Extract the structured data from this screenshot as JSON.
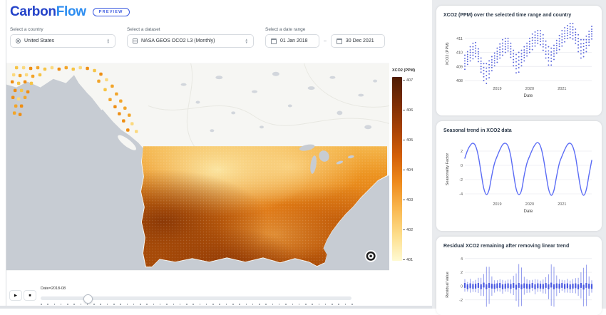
{
  "header": {
    "brand_primary": "Carbon",
    "brand_secondary": "Flow",
    "badge": "PREVIEW"
  },
  "filters": {
    "country": {
      "label": "Select a country",
      "value": "United States"
    },
    "dataset": {
      "label": "Select a dataset",
      "value": "NASA GEOS OCO2 L3 (Monthly)"
    },
    "date_range": {
      "label": "Select a date range",
      "start": "01 Jan 2018",
      "end": "30 Dec 2021",
      "separator": "–"
    }
  },
  "map": {
    "colorbar": {
      "title": "XCO2 (PPM)",
      "ticks": [
        407,
        406,
        405,
        404,
        403,
        402,
        401
      ],
      "gradient": [
        "#4f1c03",
        "#7c2d04",
        "#a84206",
        "#d35f08",
        "#ee8a1c",
        "#f9b74f",
        "#fddd8a",
        "#fffad2"
      ]
    },
    "dot_palette": [
      "#f6c445",
      "#f2a52a",
      "#ee8e14",
      "#fbd97e"
    ],
    "ocean_color": "#c7ccd3",
    "land_color": "#f6f6f3"
  },
  "timeline": {
    "play_icon": "▶",
    "stop_icon": "■",
    "label": "Date=2018-08",
    "tick_count": 48,
    "position_pct": 15
  },
  "chart_data": [
    {
      "type": "scatter",
      "title": "XCO2 (PPM) over the selected time range and country",
      "xlabel": "Date",
      "ylabel": "XCO2 (PPM)",
      "x_tick_labels": [
        "2019",
        "2020",
        "2021"
      ],
      "x_tick_positions": [
        12,
        24,
        36
      ],
      "yticks": [
        408,
        409,
        410,
        411
      ],
      "ylim": [
        407.75,
        412.05
      ],
      "x_range": "2018-01 to 2021-12 (monthly)",
      "means": [
        409.3,
        409.6,
        409.9,
        410.1,
        410.2,
        409.8,
        409.1,
        408.6,
        408.5,
        408.8,
        409.2,
        409.5,
        409.8,
        410.1,
        410.35,
        410.5,
        410.55,
        410.15,
        409.6,
        409.2,
        409.3,
        409.6,
        409.9,
        410.2,
        410.5,
        410.75,
        410.95,
        411.1,
        411.05,
        410.7,
        410.2,
        409.75,
        409.7,
        410.0,
        410.4,
        410.7,
        411.0,
        411.25,
        411.45,
        411.55,
        411.5,
        411.15,
        410.65,
        410.25,
        410.3,
        410.6,
        411.0,
        411.4
      ],
      "spread": [
        0.5,
        0.45,
        0.5,
        0.55,
        0.5,
        0.45,
        0.5,
        0.6,
        0.7,
        0.6,
        0.5,
        0.45,
        0.5,
        0.5,
        0.55,
        0.5,
        0.45,
        0.5,
        0.55,
        0.65,
        0.7,
        0.55,
        0.5,
        0.45,
        0.5,
        0.55,
        0.5,
        0.45,
        0.5,
        0.55,
        0.6,
        0.65,
        0.6,
        0.5,
        0.45,
        0.5,
        0.55,
        0.5,
        0.45,
        0.5,
        0.55,
        0.5,
        0.6,
        0.65,
        0.6,
        0.55,
        0.5,
        0.45
      ],
      "color": "#2f3fd3"
    },
    {
      "type": "line",
      "title": "Seasonal trend in XCO2 data",
      "xlabel": "Date",
      "ylabel": "Seasonality Factor",
      "x_tick_labels": [
        "2019",
        "2020",
        "2021"
      ],
      "x_tick_positions": [
        12,
        24,
        36
      ],
      "yticks": [
        2,
        0,
        -2,
        -4
      ],
      "ylim": [
        -4.8,
        3.7
      ],
      "x_range": "2018-01 to 2021-12 (monthly)",
      "values": [
        1.0,
        2.1,
        2.8,
        3.1,
        2.7,
        1.3,
        -1.0,
        -3.2,
        -4.1,
        -3.4,
        -1.4,
        0.3,
        1.3,
        2.2,
        2.9,
        3.1,
        2.7,
        1.3,
        -1.1,
        -3.3,
        -4.1,
        -3.5,
        -1.4,
        0.3,
        1.3,
        2.2,
        2.9,
        3.2,
        2.7,
        1.2,
        -1.1,
        -3.3,
        -4.2,
        -3.5,
        -1.5,
        0.3,
        1.3,
        2.2,
        2.9,
        3.1,
        2.6,
        1.2,
        -1.2,
        -3.4,
        -4.2,
        -3.4,
        -1.3,
        0.7
      ],
      "color": "#5b6cf5"
    },
    {
      "type": "errorbar",
      "title": "Residual XCO2 remaining after removing linear trend",
      "xlabel": "Date",
      "ylabel": "Residual Value",
      "x_tick_labels": [
        "2019",
        "2020",
        "2021"
      ],
      "x_tick_positions": [
        12,
        24,
        36
      ],
      "yticks": [
        4,
        2,
        0,
        -2
      ],
      "ylim": [
        -4.2,
        4.6
      ],
      "x_range": "2018-01 to 2021-12 (monthly)",
      "centers": [
        0.1,
        -0.1,
        0.05,
        -0.05,
        0.0,
        0.1,
        -0.1,
        0.15,
        -0.1,
        0.1,
        0.0,
        -0.05,
        0.05,
        0.1,
        -0.1,
        0.0,
        0.05,
        -0.05,
        0.1,
        -0.15,
        0.1,
        -0.1,
        0.05,
        0.0,
        -0.05,
        0.1,
        -0.1,
        0.05,
        0.0,
        -0.05,
        0.1,
        -0.1,
        0.15,
        -0.1,
        0.05,
        0.0,
        0.1,
        -0.05,
        0.05,
        -0.1,
        0.0,
        0.05,
        -0.1,
        0.1,
        -0.15,
        0.1,
        0.0,
        -0.05
      ],
      "half_range": [
        0.9,
        0.7,
        1.0,
        0.8,
        0.9,
        1.1,
        1.3,
        1.6,
        2.9,
        2.7,
        1.4,
        0.9,
        0.8,
        0.9,
        1.0,
        0.8,
        0.9,
        1.0,
        1.4,
        2.0,
        3.1,
        2.8,
        1.3,
        1.0,
        0.9,
        0.8,
        1.1,
        0.9,
        0.8,
        1.0,
        1.2,
        1.8,
        3.0,
        2.9,
        1.5,
        1.0,
        0.8,
        0.9,
        1.0,
        0.9,
        1.0,
        1.1,
        1.3,
        1.9,
        2.8,
        3.0,
        1.4,
        0.9
      ],
      "box_half": 0.35,
      "color": "#3c4ce0"
    }
  ]
}
